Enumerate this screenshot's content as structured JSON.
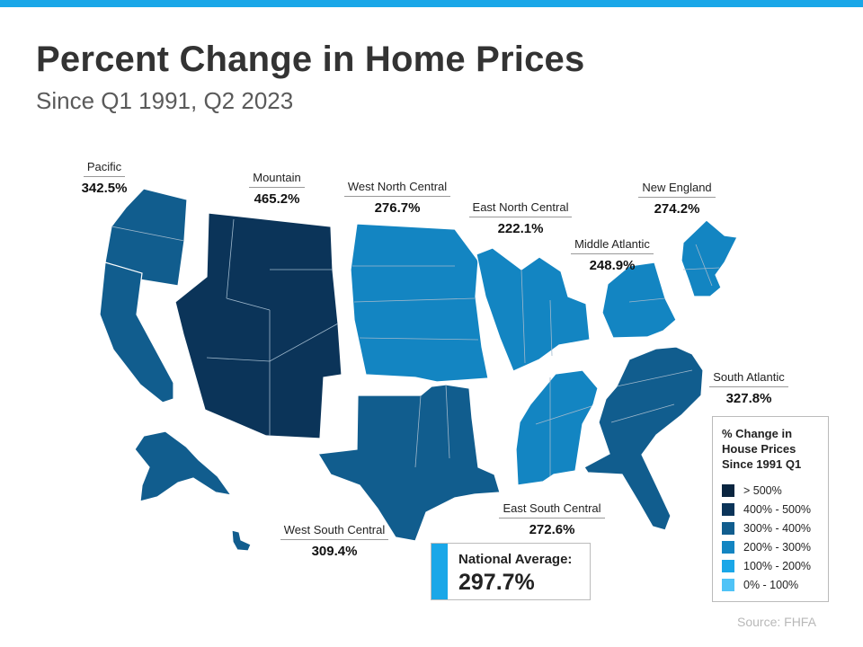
{
  "header": {
    "title": "Percent Change in Home Prices",
    "subtitle": "Since Q1 1991, Q2 2023"
  },
  "colors": {
    "accent_bar": "#1aa7e8",
    "above_500": "#0a2540",
    "c400_500": "#0b3459",
    "c300_400": "#115d8e",
    "c200_300": "#1385c2",
    "c100_200": "#1aa7e8",
    "c0_100": "#4fc3f7",
    "state_border": "#9fb8cc"
  },
  "regions": {
    "pacific": {
      "name": "Pacific",
      "value": "342.5%",
      "bucket": "300-400"
    },
    "mountain": {
      "name": "Mountain",
      "value": "465.2%",
      "bucket": "400-500"
    },
    "west_north_central": {
      "name": "West North Central",
      "value": "276.7%",
      "bucket": "200-300"
    },
    "east_north_central": {
      "name": "East North Central",
      "value": "222.1%",
      "bucket": "200-300"
    },
    "middle_atlantic": {
      "name": "Middle Atlantic",
      "value": "248.9%",
      "bucket": "200-300"
    },
    "new_england": {
      "name": "New England",
      "value": "274.2%",
      "bucket": "200-300"
    },
    "south_atlantic": {
      "name": "South Atlantic",
      "value": "327.8%",
      "bucket": "300-400"
    },
    "east_south_central": {
      "name": "East South Central",
      "value": "272.6%",
      "bucket": "200-300"
    },
    "west_south_central": {
      "name": "West South Central",
      "value": "309.4%",
      "bucket": "300-400"
    }
  },
  "legend": {
    "title_lines": [
      "% Change in",
      "House Prices",
      "Since 1991 Q1"
    ],
    "items": [
      {
        "label": "> 500%"
      },
      {
        "label": "400% - 500%"
      },
      {
        "label": "300% - 400%"
      },
      {
        "label": "200% - 300%"
      },
      {
        "label": "100% - 200%"
      },
      {
        "label": "0% - 100%"
      }
    ]
  },
  "national": {
    "label": "National Average:",
    "value": "297.7%"
  },
  "source": "Source: FHFA"
}
